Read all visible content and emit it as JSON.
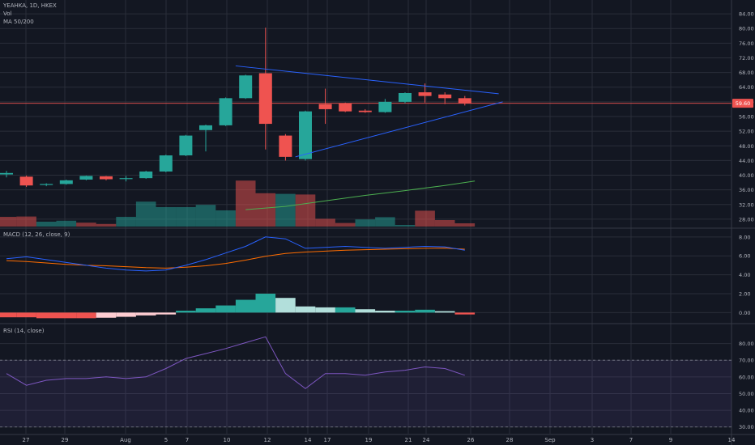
{
  "header": {
    "symbol": "YEAHKA, 1D, HKEX",
    "vol_label": "Vol",
    "ma_label": "MA 50/200"
  },
  "macd_label": "MACD (12, 26, close, 9)",
  "rsi_label": "RSI (14, close)",
  "colors": {
    "up": "#26a69a",
    "down": "#ef5350",
    "background": "#131722",
    "grid": "#2a2e39",
    "text": "#b2b5be",
    "trend": "#2962ff",
    "macd": "#2962ff",
    "signal": "#ff6d00",
    "ma": "#4caf50",
    "rsi": "#7e57c2",
    "price_line": "#ef5350"
  },
  "chart_data": [
    {
      "type": "candlestick",
      "title": "YEAHKA, 1D, HKEX",
      "x_ticks": [
        "27",
        "29",
        "Aug",
        "5",
        "7",
        "10",
        "12",
        "14",
        "17",
        "19",
        "21",
        "24",
        "26",
        "28",
        "Sep",
        "3",
        "7",
        "9",
        "14"
      ],
      "y_ticks": [
        "28.00",
        "32.00",
        "36.00",
        "40.00",
        "44.00",
        "48.00",
        "52.00",
        "56.00",
        "60.00",
        "64.00",
        "68.00",
        "72.00",
        "76.00",
        "80.00",
        "84.00"
      ],
      "ylim": [
        26,
        86
      ],
      "last_price_label": "59.60",
      "last_price": 59.6,
      "candles": [
        {
          "o": 40.2,
          "h": 41.2,
          "l": 39.4,
          "c": 40.6
        },
        {
          "o": 39.6,
          "h": 39.9,
          "l": 36.8,
          "c": 37.2
        },
        {
          "o": 37.4,
          "h": 37.8,
          "l": 37.0,
          "c": 37.6
        },
        {
          "o": 37.6,
          "h": 38.8,
          "l": 37.4,
          "c": 38.6
        },
        {
          "o": 38.8,
          "h": 39.9,
          "l": 38.6,
          "c": 39.8
        },
        {
          "o": 39.7,
          "h": 39.8,
          "l": 38.6,
          "c": 38.9
        },
        {
          "o": 39.0,
          "h": 39.8,
          "l": 38.3,
          "c": 39.2
        },
        {
          "o": 39.2,
          "h": 41.2,
          "l": 39.0,
          "c": 41.0
        },
        {
          "o": 41.0,
          "h": 45.6,
          "l": 40.8,
          "c": 45.4
        },
        {
          "o": 45.4,
          "h": 51.0,
          "l": 45.2,
          "c": 50.8
        },
        {
          "o": 52.3,
          "h": 53.8,
          "l": 46.5,
          "c": 53.6
        },
        {
          "o": 53.6,
          "h": 61.2,
          "l": 53.4,
          "c": 61.0
        },
        {
          "o": 61.0,
          "h": 67.4,
          "l": 60.8,
          "c": 67.2
        },
        {
          "o": 67.8,
          "h": 80.2,
          "l": 47.0,
          "c": 54.0
        },
        {
          "o": 50.8,
          "h": 51.2,
          "l": 44.0,
          "c": 45.0
        },
        {
          "o": 44.4,
          "h": 57.6,
          "l": 44.0,
          "c": 57.4
        },
        {
          "o": 59.4,
          "h": 63.6,
          "l": 54.0,
          "c": 58.0
        },
        {
          "o": 59.6,
          "h": 59.8,
          "l": 57.2,
          "c": 57.4
        },
        {
          "o": 57.6,
          "h": 58.0,
          "l": 57.0,
          "c": 57.2
        },
        {
          "o": 57.2,
          "h": 60.8,
          "l": 57.0,
          "c": 60.0
        },
        {
          "o": 60.0,
          "h": 62.6,
          "l": 59.6,
          "c": 62.4
        },
        {
          "o": 62.6,
          "h": 65.0,
          "l": 59.8,
          "c": 61.6
        },
        {
          "o": 62.0,
          "h": 62.6,
          "l": 59.4,
          "c": 61.0
        },
        {
          "o": 61.0,
          "h": 61.6,
          "l": 59.0,
          "c": 59.6
        }
      ],
      "volume": [
        {
          "v": 0.3,
          "up": false
        },
        {
          "v": 0.31,
          "up": false
        },
        {
          "v": 0.15,
          "up": true
        },
        {
          "v": 0.18,
          "up": true
        },
        {
          "v": 0.12,
          "up": false
        },
        {
          "v": 0.08,
          "up": false
        },
        {
          "v": 0.3,
          "up": true
        },
        {
          "v": 0.77,
          "up": true
        },
        {
          "v": 0.6,
          "up": true
        },
        {
          "v": 0.6,
          "up": true
        },
        {
          "v": 0.67,
          "up": true
        },
        {
          "v": 0.5,
          "up": true
        },
        {
          "v": 1.42,
          "up": false
        },
        {
          "v": 1.03,
          "up": false
        },
        {
          "v": 1.01,
          "up": true
        },
        {
          "v": 0.99,
          "up": false
        },
        {
          "v": 0.24,
          "up": false
        },
        {
          "v": 0.11,
          "up": false
        },
        {
          "v": 0.22,
          "up": true
        },
        {
          "v": 0.29,
          "up": true
        },
        {
          "v": 0.05,
          "up": true
        },
        {
          "v": 0.49,
          "up": false
        },
        {
          "v": 0.2,
          "up": false
        },
        {
          "v": 0.1,
          "up": false
        }
      ],
      "ma50": [
        {
          "i": 12,
          "v": 30.6
        },
        {
          "i": 14,
          "v": 31.5
        },
        {
          "i": 16,
          "v": 33.0
        },
        {
          "i": 18,
          "v": 34.5
        },
        {
          "i": 20,
          "v": 35.8
        },
        {
          "i": 22,
          "v": 37.2
        },
        {
          "i": 23.5,
          "v": 38.4
        }
      ],
      "trendlines": [
        {
          "from": {
            "i": 11.5,
            "v": 69.8
          },
          "to": {
            "i": 24.7,
            "v": 62.2
          }
        },
        {
          "from": {
            "i": 14.5,
            "v": 45.0
          },
          "to": {
            "i": 24.9,
            "v": 60.0
          }
        }
      ]
    },
    {
      "type": "macd",
      "title": "MACD (12, 26, close, 9)",
      "y_ticks": [
        "0.00",
        "2.00",
        "4.00",
        "6.00",
        "8.00"
      ],
      "ylim": [
        -1.0,
        8.5
      ],
      "macd": [
        5.7,
        5.9,
        5.6,
        5.3,
        5.0,
        4.7,
        4.5,
        4.4,
        4.5,
        5.0,
        5.6,
        6.3,
        7.0,
        8.0,
        7.8,
        6.8,
        6.9,
        7.0,
        6.9,
        6.8,
        6.9,
        7.0,
        6.95,
        6.6
      ],
      "signal": [
        5.5,
        5.4,
        5.25,
        5.1,
        5.0,
        4.95,
        4.85,
        4.75,
        4.7,
        4.8,
        4.95,
        5.2,
        5.55,
        5.95,
        6.25,
        6.4,
        6.5,
        6.6,
        6.65,
        6.7,
        6.75,
        6.8,
        6.82,
        6.7
      ],
      "histogram": [
        -0.5,
        -0.5,
        -0.6,
        -0.6,
        -0.6,
        -0.55,
        -0.45,
        -0.3,
        -0.2,
        0.2,
        0.45,
        0.75,
        1.35,
        2.0,
        1.55,
        0.65,
        0.55,
        0.55,
        0.35,
        0.2,
        0.2,
        0.3,
        0.15,
        -0.2
      ]
    },
    {
      "type": "line",
      "title": "RSI (14, close)",
      "y_ticks": [
        "30.00",
        "40.00",
        "50.00",
        "60.00",
        "70.00",
        "80.00"
      ],
      "ylim": [
        26,
        89
      ],
      "upper_band": 70,
      "lower_band": 30,
      "values": [
        62,
        55,
        58,
        59,
        59,
        60,
        59,
        60,
        65,
        71,
        74,
        77,
        80.5,
        84,
        62,
        53,
        62,
        62,
        61,
        63,
        64,
        66,
        65,
        61
      ]
    }
  ]
}
